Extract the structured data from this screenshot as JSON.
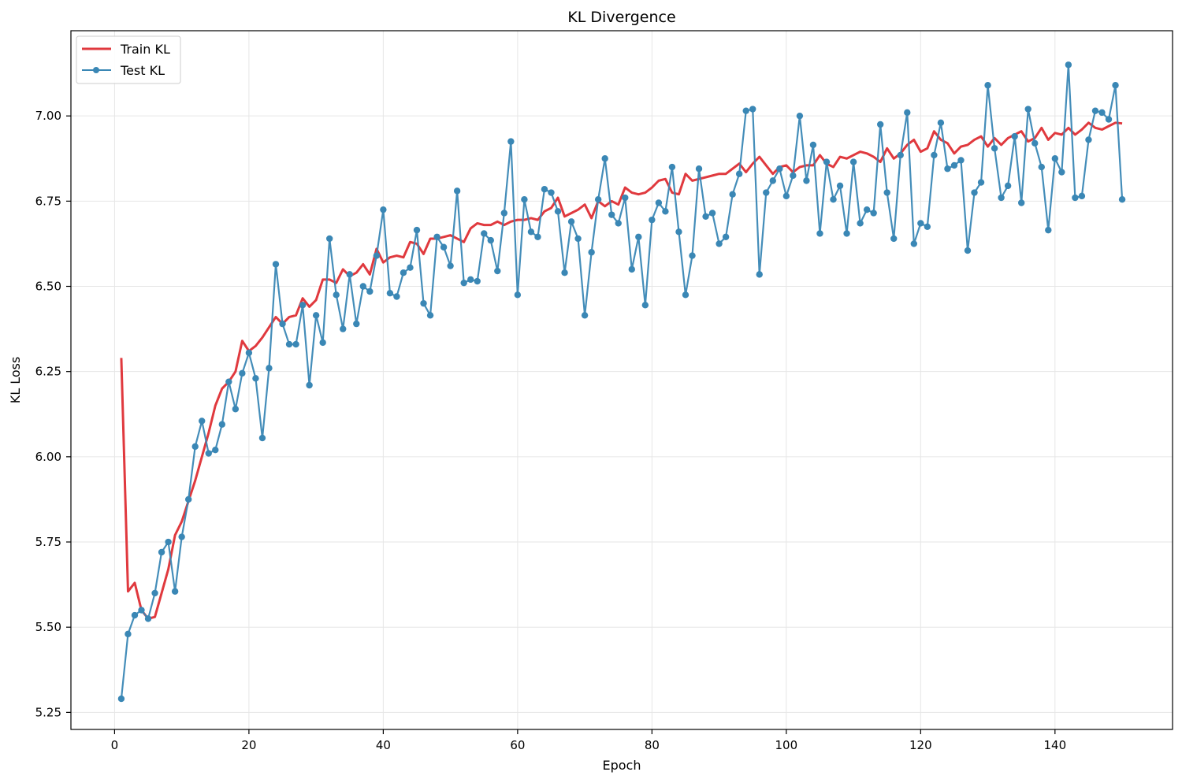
{
  "chart_data": {
    "type": "line",
    "title": "KL Divergence",
    "xlabel": "Epoch",
    "ylabel": "KL Loss",
    "xlim": [
      -6.5,
      157.5
    ],
    "ylim": [
      5.2,
      7.25
    ],
    "xticks": [
      0,
      20,
      40,
      60,
      80,
      100,
      120,
      140
    ],
    "yticks": [
      5.25,
      5.5,
      5.75,
      6.0,
      6.25,
      6.5,
      6.75,
      7.0
    ],
    "ytick_labels": [
      "5.25",
      "5.50",
      "5.75",
      "6.00",
      "6.25",
      "6.50",
      "6.75",
      "7.00"
    ],
    "grid": true,
    "legend_position": "top-left",
    "series": [
      {
        "name": "Train KL",
        "color": "#e0393e",
        "marker": "none",
        "x_start": 1,
        "values": [
          6.29,
          5.605,
          5.63,
          5.55,
          5.525,
          5.53,
          5.6,
          5.67,
          5.77,
          5.81,
          5.87,
          5.93,
          6.0,
          6.07,
          6.15,
          6.2,
          6.22,
          6.25,
          6.34,
          6.31,
          6.325,
          6.35,
          6.38,
          6.41,
          6.39,
          6.41,
          6.415,
          6.465,
          6.44,
          6.46,
          6.52,
          6.52,
          6.51,
          6.55,
          6.53,
          6.54,
          6.565,
          6.535,
          6.61,
          6.57,
          6.585,
          6.59,
          6.585,
          6.63,
          6.625,
          6.595,
          6.64,
          6.64,
          6.645,
          6.65,
          6.64,
          6.63,
          6.67,
          6.685,
          6.68,
          6.68,
          6.69,
          6.68,
          6.69,
          6.695,
          6.695,
          6.7,
          6.695,
          6.72,
          6.73,
          6.76,
          6.705,
          6.715,
          6.725,
          6.74,
          6.7,
          6.75,
          6.735,
          6.75,
          6.74,
          6.79,
          6.775,
          6.77,
          6.775,
          6.79,
          6.81,
          6.815,
          6.775,
          6.77,
          6.83,
          6.81,
          6.815,
          6.82,
          6.825,
          6.83,
          6.83,
          6.845,
          6.86,
          6.835,
          6.86,
          6.88,
          6.855,
          6.83,
          6.85,
          6.855,
          6.835,
          6.85,
          6.855,
          6.855,
          6.885,
          6.86,
          6.85,
          6.88,
          6.875,
          6.885,
          6.895,
          6.89,
          6.88,
          6.865,
          6.905,
          6.875,
          6.89,
          6.915,
          6.93,
          6.895,
          6.905,
          6.955,
          6.93,
          6.92,
          6.89,
          6.91,
          6.915,
          6.93,
          6.94,
          6.91,
          6.935,
          6.915,
          6.935,
          6.945,
          6.955,
          6.925,
          6.935,
          6.965,
          6.93,
          6.95,
          6.945,
          6.965,
          6.945,
          6.96,
          6.98,
          6.965,
          6.96,
          6.97,
          6.98,
          6.978
        ]
      },
      {
        "name": "Test KL",
        "color": "#3a87b5",
        "marker": "circle",
        "x_start": 1,
        "values": [
          5.29,
          5.48,
          5.535,
          5.55,
          5.525,
          5.6,
          5.72,
          5.75,
          5.605,
          5.765,
          5.875,
          6.03,
          6.105,
          6.01,
          6.02,
          6.095,
          6.22,
          6.14,
          6.245,
          6.305,
          6.23,
          6.055,
          6.26,
          6.565,
          6.39,
          6.33,
          6.33,
          6.445,
          6.21,
          6.415,
          6.335,
          6.64,
          6.475,
          6.375,
          6.535,
          6.39,
          6.5,
          6.485,
          6.59,
          6.725,
          6.48,
          6.47,
          6.54,
          6.555,
          6.665,
          6.45,
          6.415,
          6.645,
          6.615,
          6.56,
          6.78,
          6.51,
          6.52,
          6.515,
          6.655,
          6.635,
          6.545,
          6.715,
          6.925,
          6.475,
          6.755,
          6.66,
          6.645,
          6.785,
          6.775,
          6.72,
          6.54,
          6.69,
          6.64,
          6.415,
          6.6,
          6.755,
          6.875,
          6.71,
          6.685,
          6.76,
          6.55,
          6.645,
          6.445,
          6.695,
          6.745,
          6.72,
          6.85,
          6.66,
          6.475,
          6.59,
          6.845,
          6.705,
          6.715,
          6.625,
          6.645,
          6.77,
          6.83,
          7.015,
          7.02,
          6.535,
          6.775,
          6.81,
          6.845,
          6.765,
          6.825,
          7.0,
          6.81,
          6.915,
          6.655,
          6.865,
          6.755,
          6.795,
          6.655,
          6.865,
          6.685,
          6.725,
          6.715,
          6.975,
          6.775,
          6.64,
          6.885,
          7.01,
          6.625,
          6.685,
          6.675,
          6.885,
          6.98,
          6.845,
          6.855,
          6.87,
          6.605,
          6.775,
          6.805,
          7.09,
          6.905,
          6.76,
          6.795,
          6.94,
          6.745,
          7.02,
          6.92,
          6.85,
          6.665,
          6.875,
          6.835,
          7.15,
          6.76,
          6.765,
          6.93,
          7.015,
          7.01,
          6.99,
          7.09,
          6.755
        ]
      }
    ]
  }
}
